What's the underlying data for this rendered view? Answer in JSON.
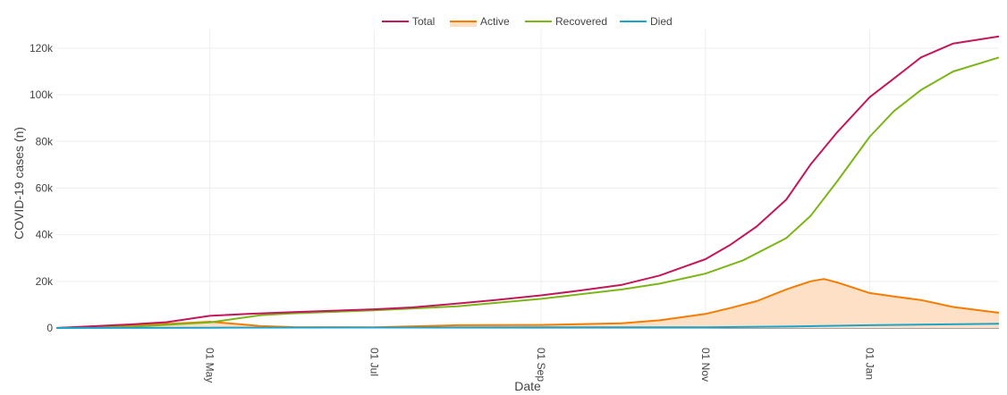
{
  "chart_data": {
    "type": "line",
    "xlabel": "Date",
    "ylabel": "COVID-19 cases (n)",
    "x_range": [
      "2020-03-05",
      "2021-02-18"
    ],
    "ylim": [
      0,
      128000
    ],
    "x_tick_labels": [
      {
        "date": "2020-05-01",
        "label": "01 May"
      },
      {
        "date": "2020-07-01",
        "label": "01 Jul"
      },
      {
        "date": "2020-09-01",
        "label": "01 Sep"
      },
      {
        "date": "2020-11-01",
        "label": "01 Nov"
      },
      {
        "date": "2021-01-01",
        "label": "01 Jan"
      }
    ],
    "y_tick_labels": [
      {
        "value": 0,
        "label": "0"
      },
      {
        "value": 20000,
        "label": "20k"
      },
      {
        "value": 40000,
        "label": "40k"
      },
      {
        "value": 60000,
        "label": "60k"
      },
      {
        "value": 80000,
        "label": "80k"
      },
      {
        "value": 100000,
        "label": "100k"
      },
      {
        "value": 120000,
        "label": "120k"
      }
    ],
    "grid": true,
    "legend_position": "top-center",
    "series": [
      {
        "name": "Total",
        "color": "#c2185b",
        "fill": false,
        "points": [
          [
            "2020-03-05",
            0
          ],
          [
            "2020-04-01",
            1500
          ],
          [
            "2020-04-15",
            2500
          ],
          [
            "2020-05-01",
            5200
          ],
          [
            "2020-05-15",
            6000
          ],
          [
            "2020-06-01",
            6800
          ],
          [
            "2020-07-01",
            8000
          ],
          [
            "2020-07-15",
            8800
          ],
          [
            "2020-08-01",
            10500
          ],
          [
            "2020-08-15",
            12000
          ],
          [
            "2020-09-01",
            14000
          ],
          [
            "2020-09-15",
            16000
          ],
          [
            "2020-10-01",
            18500
          ],
          [
            "2020-10-15",
            22500
          ],
          [
            "2020-11-01",
            29500
          ],
          [
            "2020-11-10",
            35500
          ],
          [
            "2020-11-20",
            43500
          ],
          [
            "2020-12-01",
            55000
          ],
          [
            "2020-12-10",
            70000
          ],
          [
            "2020-12-20",
            84000
          ],
          [
            "2021-01-01",
            99000
          ],
          [
            "2021-01-10",
            107000
          ],
          [
            "2021-01-20",
            116000
          ],
          [
            "2021-02-01",
            122000
          ],
          [
            "2021-02-18",
            125000
          ]
        ]
      },
      {
        "name": "Active",
        "color": "#f57c00",
        "fill": true,
        "fill_color": "#fde0c5",
        "points": [
          [
            "2020-03-05",
            0
          ],
          [
            "2020-04-01",
            1000
          ],
          [
            "2020-04-20",
            2000
          ],
          [
            "2020-05-01",
            2700
          ],
          [
            "2020-05-10",
            1800
          ],
          [
            "2020-05-20",
            800
          ],
          [
            "2020-06-01",
            400
          ],
          [
            "2020-07-01",
            300
          ],
          [
            "2020-08-01",
            1200
          ],
          [
            "2020-09-01",
            1300
          ],
          [
            "2020-10-01",
            2000
          ],
          [
            "2020-10-15",
            3300
          ],
          [
            "2020-11-01",
            6000
          ],
          [
            "2020-11-10",
            8500
          ],
          [
            "2020-11-20",
            11500
          ],
          [
            "2020-12-01",
            16500
          ],
          [
            "2020-12-10",
            20000
          ],
          [
            "2020-12-15",
            21000
          ],
          [
            "2020-12-20",
            19500
          ],
          [
            "2021-01-01",
            15000
          ],
          [
            "2021-01-10",
            13500
          ],
          [
            "2021-01-20",
            12000
          ],
          [
            "2021-02-01",
            9000
          ],
          [
            "2021-02-18",
            6500
          ]
        ]
      },
      {
        "name": "Recovered",
        "color": "#7cb518",
        "fill": false,
        "points": [
          [
            "2020-03-05",
            0
          ],
          [
            "2020-04-01",
            500
          ],
          [
            "2020-05-01",
            2400
          ],
          [
            "2020-05-20",
            5500
          ],
          [
            "2020-06-01",
            6300
          ],
          [
            "2020-07-01",
            7600
          ],
          [
            "2020-08-01",
            9300
          ],
          [
            "2020-09-01",
            12500
          ],
          [
            "2020-10-01",
            16500
          ],
          [
            "2020-10-15",
            19000
          ],
          [
            "2020-11-01",
            23300
          ],
          [
            "2020-11-15",
            29000
          ],
          [
            "2020-12-01",
            38500
          ],
          [
            "2020-12-10",
            48000
          ],
          [
            "2020-12-20",
            63000
          ],
          [
            "2021-01-01",
            82000
          ],
          [
            "2021-01-10",
            93000
          ],
          [
            "2021-01-20",
            102000
          ],
          [
            "2021-02-01",
            110000
          ],
          [
            "2021-02-18",
            116000
          ]
        ]
      },
      {
        "name": "Died",
        "color": "#1ca3c9",
        "fill": false,
        "points": [
          [
            "2020-03-05",
            0
          ],
          [
            "2020-05-01",
            100
          ],
          [
            "2020-07-01",
            200
          ],
          [
            "2020-09-01",
            250
          ],
          [
            "2020-11-01",
            300
          ],
          [
            "2020-12-01",
            600
          ],
          [
            "2021-01-01",
            1200
          ],
          [
            "2021-02-18",
            1800
          ]
        ]
      }
    ]
  }
}
